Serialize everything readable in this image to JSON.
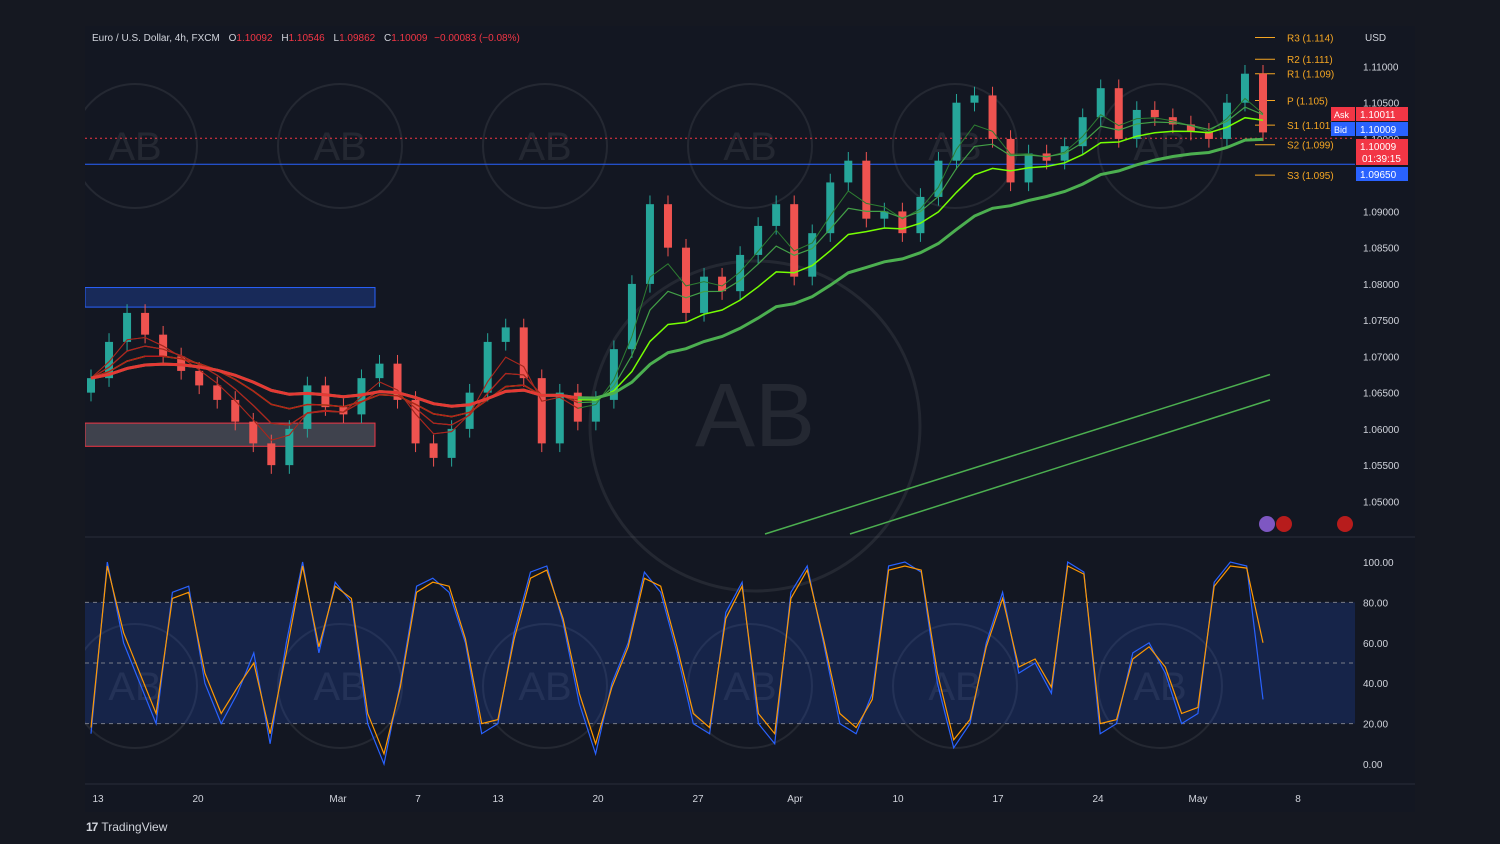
{
  "header": {
    "symbol": "Euro / U.S. Dollar, 4h, FXCM",
    "open_label": "O",
    "open": "1.10092",
    "high_label": "H",
    "high": "1.10546",
    "low_label": "L",
    "low": "1.09862",
    "close_label": "C",
    "close": "1.10009",
    "change": "−0.00083 (−0.08%)"
  },
  "branding": {
    "logo_text": "TradingView",
    "watermark_text": "AB"
  },
  "chart_data": [
    {
      "type": "candlestick",
      "currency": "USD",
      "y_ticks": [
        "1.11000",
        "1.10500",
        "1.10000",
        "1.09500",
        "1.09000",
        "1.08500",
        "1.08000",
        "1.07500",
        "1.07000",
        "1.06500",
        "1.06000",
        "1.05500",
        "1.05000"
      ],
      "ylim": [
        1.0455,
        1.1142
      ],
      "x_ticks": [
        "13",
        "20",
        "Mar",
        "7",
        "13",
        "20",
        "27",
        "Apr",
        "10",
        "17",
        "24",
        "May",
        "8"
      ],
      "pivots": [
        {
          "label": "R3 (1.114)",
          "value": 1.114
        },
        {
          "label": "R2 (1.111)",
          "value": 1.111
        },
        {
          "label": "R1 (1.109)",
          "value": 1.109
        },
        {
          "label": "P (1.105)",
          "value": 1.1053
        },
        {
          "label": "S1 (1.101)",
          "value": 1.1019
        },
        {
          "label": "S2 (1.099)",
          "value": 1.0992
        },
        {
          "label": "S3 (1.095)",
          "value": 1.095
        }
      ],
      "price_tags": [
        {
          "label": "Ask",
          "value": "1.10011",
          "color": "#f23645"
        },
        {
          "label": "Bid",
          "value": "1.10009",
          "color": "#2962ff"
        },
        {
          "label": "",
          "value": "1.10009",
          "extra": "01:39:15",
          "color": "#f23645"
        },
        {
          "label": "",
          "value": "1.09650",
          "color": "#2962ff"
        }
      ],
      "horizontal_lines": [
        {
          "value": 1.1001,
          "style": "dotted",
          "color": "#f23645"
        },
        {
          "value": 1.0965,
          "style": "solid",
          "color": "#2962ff"
        }
      ],
      "zones": [
        {
          "from": 1.0768,
          "to": 1.0795,
          "color": "#2962ff"
        },
        {
          "from": 1.0576,
          "to": 1.0608,
          "color": "#f23645"
        }
      ],
      "series": [
        {
          "values": [
            1.067,
            1.072,
            1.076,
            1.073,
            1.07,
            1.068,
            1.066,
            1.064,
            1.061,
            1.058,
            1.055,
            1.06,
            1.066,
            1.063,
            1.062,
            1.067,
            1.069,
            1.064,
            1.058,
            1.056,
            1.06,
            1.065,
            1.072,
            1.074,
            1.067,
            1.058,
            1.065,
            1.061,
            1.064,
            1.071,
            1.08,
            1.091,
            1.085,
            1.076,
            1.081,
            1.079,
            1.084,
            1.088,
            1.091,
            1.081,
            1.087,
            1.094,
            1.097,
            1.089,
            1.09,
            1.087,
            1.092,
            1.097,
            1.105,
            1.106,
            1.1,
            1.094,
            1.098,
            1.097,
            1.099,
            1.103,
            1.107,
            1.1,
            1.104,
            1.103,
            1.102,
            1.101,
            1.1,
            1.105,
            1.109,
            1.1009
          ]
        }
      ]
    },
    {
      "type": "line",
      "oscillator": true,
      "y_ticks": [
        "100.00",
        "80.00",
        "60.00",
        "40.00",
        "20.00",
        "0.00"
      ],
      "ylim": [
        0,
        100
      ],
      "overbought": 80,
      "middle": 50,
      "oversold": 20,
      "series": [
        {
          "color": "#2962ff",
          "values": [
            15,
            100,
            60,
            40,
            20,
            85,
            88,
            40,
            20,
            35,
            55,
            10,
            60,
            100,
            55,
            90,
            80,
            20,
            0,
            40,
            88,
            92,
            85,
            60,
            15,
            20,
            65,
            95,
            98,
            70,
            30,
            5,
            40,
            60,
            95,
            85,
            55,
            20,
            15,
            75,
            90,
            20,
            10,
            85,
            98,
            60,
            20,
            15,
            35,
            98,
            100,
            95,
            40,
            8,
            20,
            60,
            85,
            45,
            50,
            35,
            100,
            95,
            15,
            20,
            55,
            60,
            45,
            20,
            25,
            90,
            100,
            98,
            32
          ]
        },
        {
          "color": "#ff9800",
          "values": [
            18,
            98,
            65,
            45,
            25,
            82,
            85,
            45,
            25,
            38,
            50,
            15,
            55,
            98,
            58,
            88,
            82,
            25,
            5,
            38,
            85,
            90,
            88,
            62,
            20,
            22,
            62,
            92,
            96,
            72,
            35,
            10,
            38,
            58,
            92,
            88,
            58,
            25,
            18,
            72,
            88,
            25,
            15,
            82,
            96,
            62,
            25,
            18,
            32,
            96,
            98,
            96,
            45,
            12,
            22,
            58,
            82,
            48,
            52,
            38,
            98,
            94,
            20,
            22,
            52,
            58,
            48,
            25,
            28,
            88,
            98,
            97,
            60
          ]
        }
      ]
    }
  ]
}
